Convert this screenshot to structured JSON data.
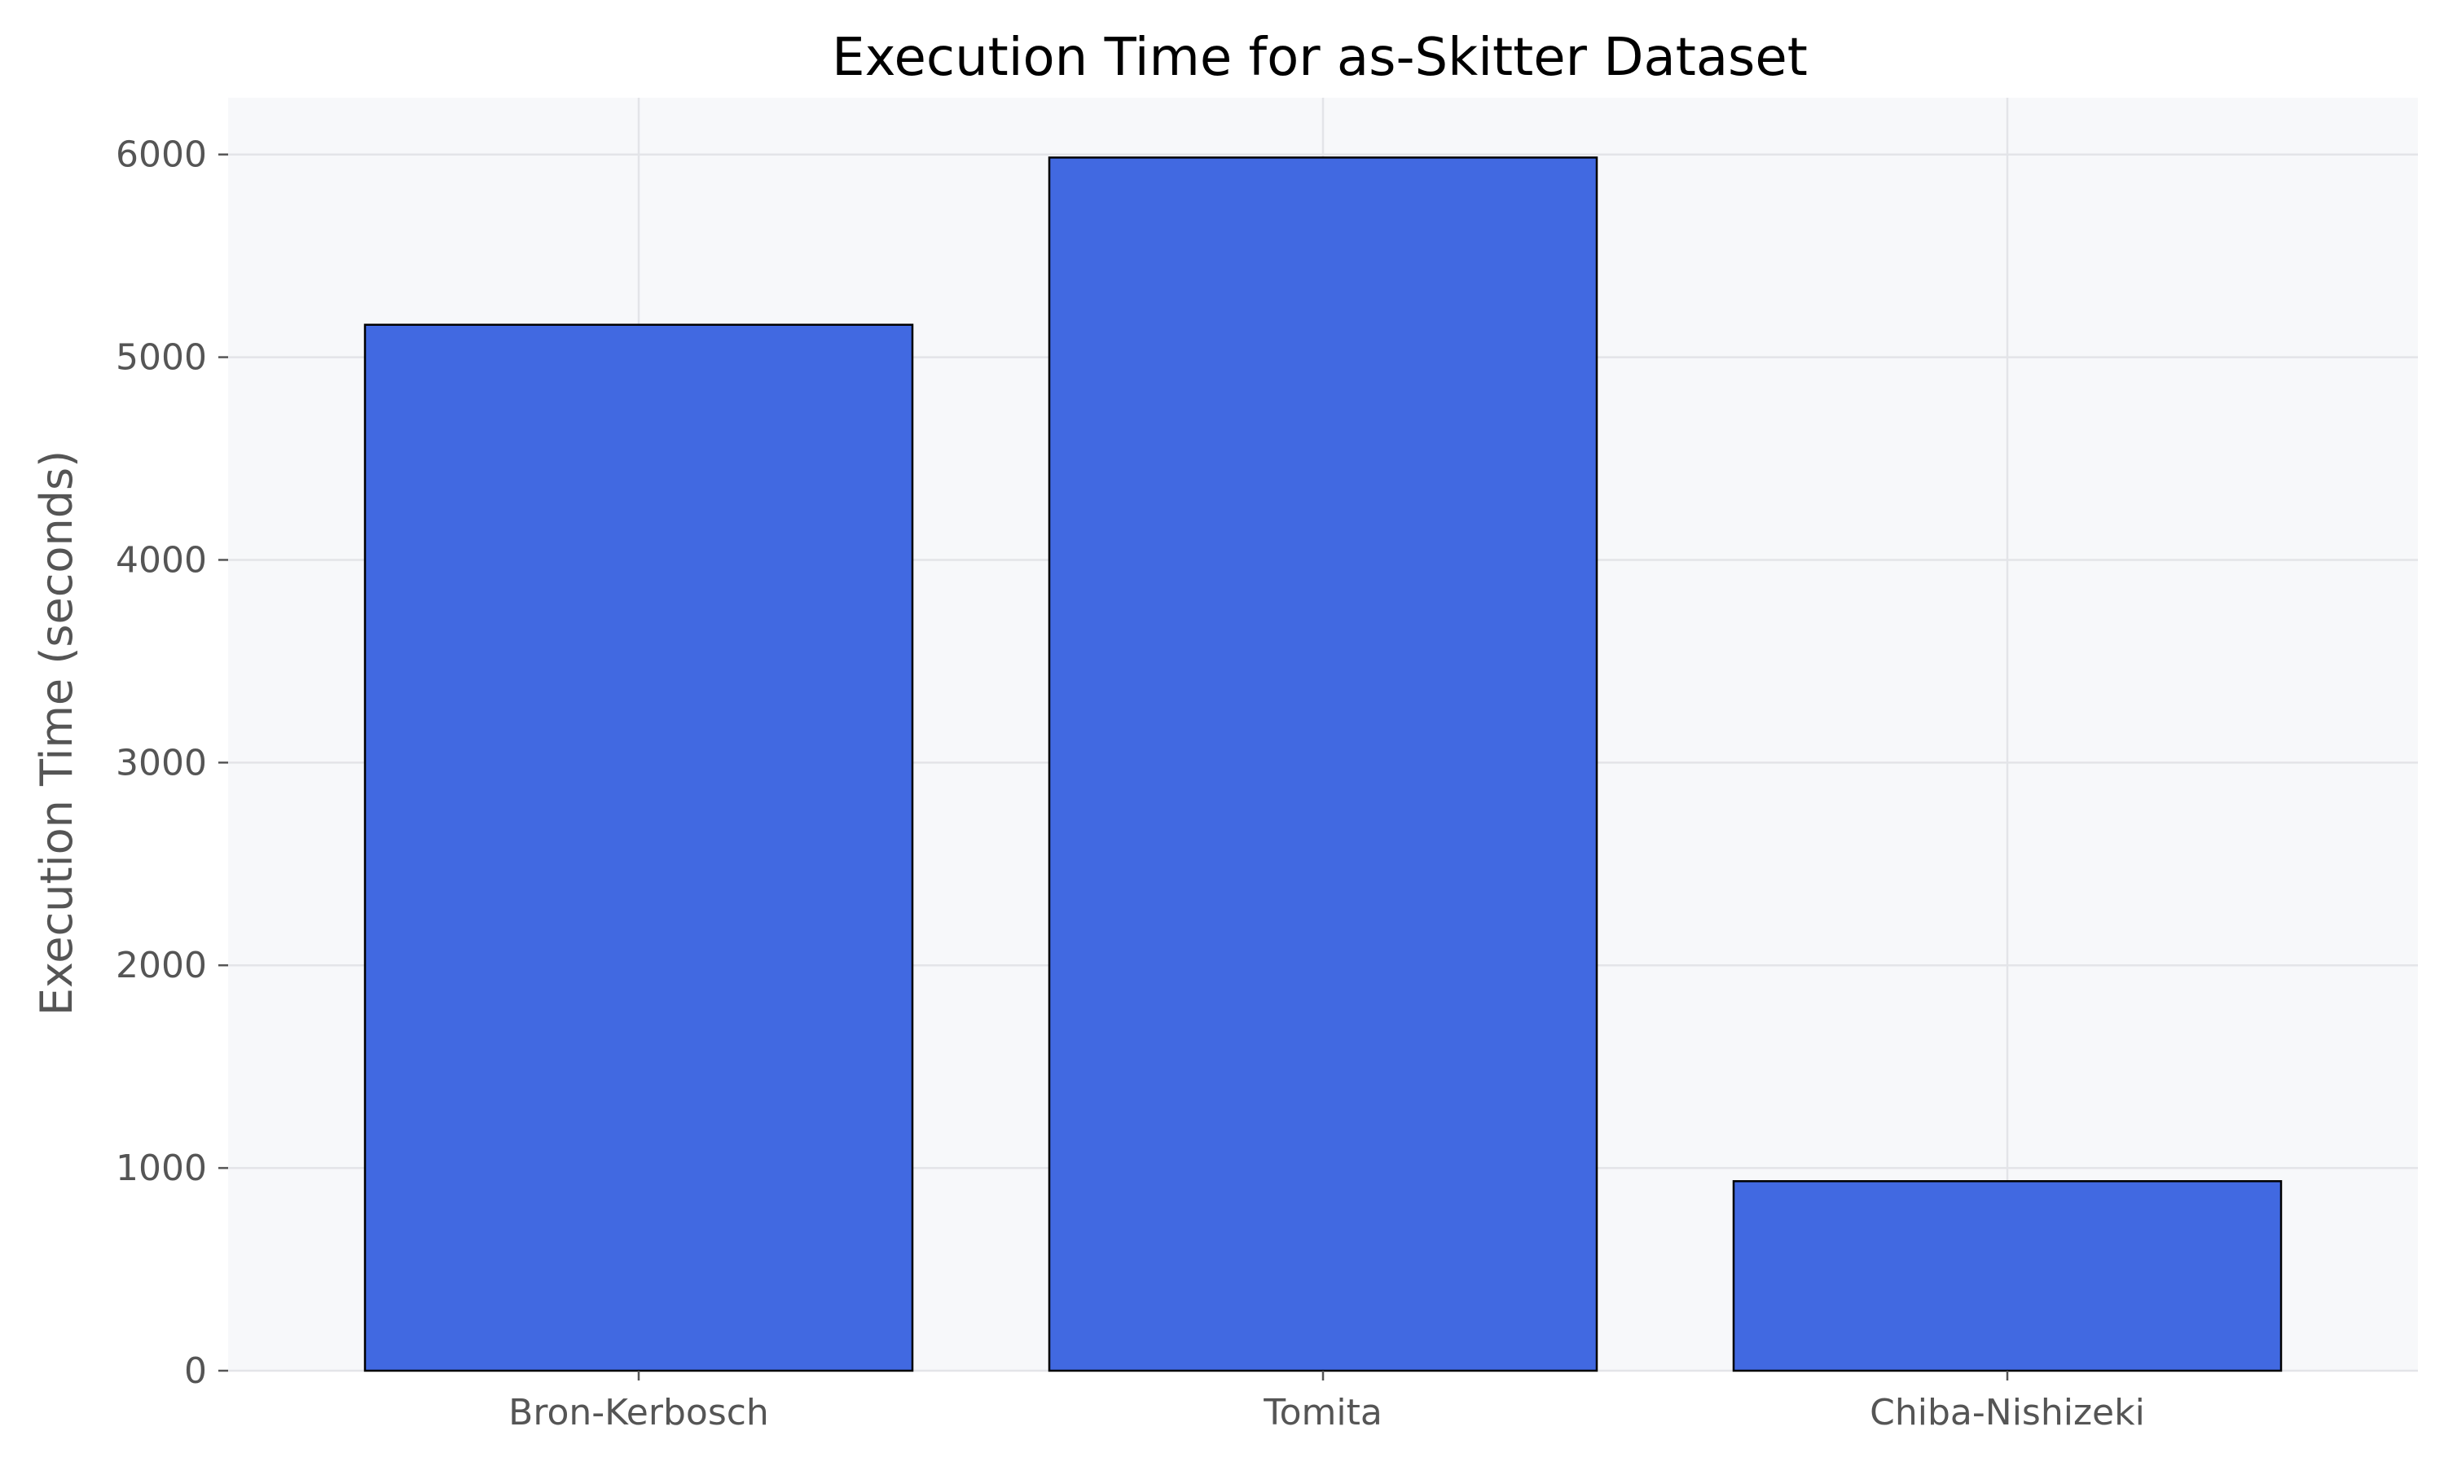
{
  "chart_data": {
    "type": "bar",
    "title": "Execution Time for as-Skitter Dataset",
    "xlabel": "",
    "ylabel": "Execution Time (seconds)",
    "categories": [
      "Bron-Kerbosch",
      "Tomita",
      "Chiba-Nishizeki"
    ],
    "values": [
      5160,
      5985,
      935
    ],
    "ylim": [
      0,
      6280
    ],
    "yticks": [
      0,
      1000,
      2000,
      3000,
      4000,
      5000,
      6000
    ],
    "grid": true,
    "legend": "none",
    "bar_color": "#4169e1",
    "plot_background": "#f7f8fa"
  }
}
